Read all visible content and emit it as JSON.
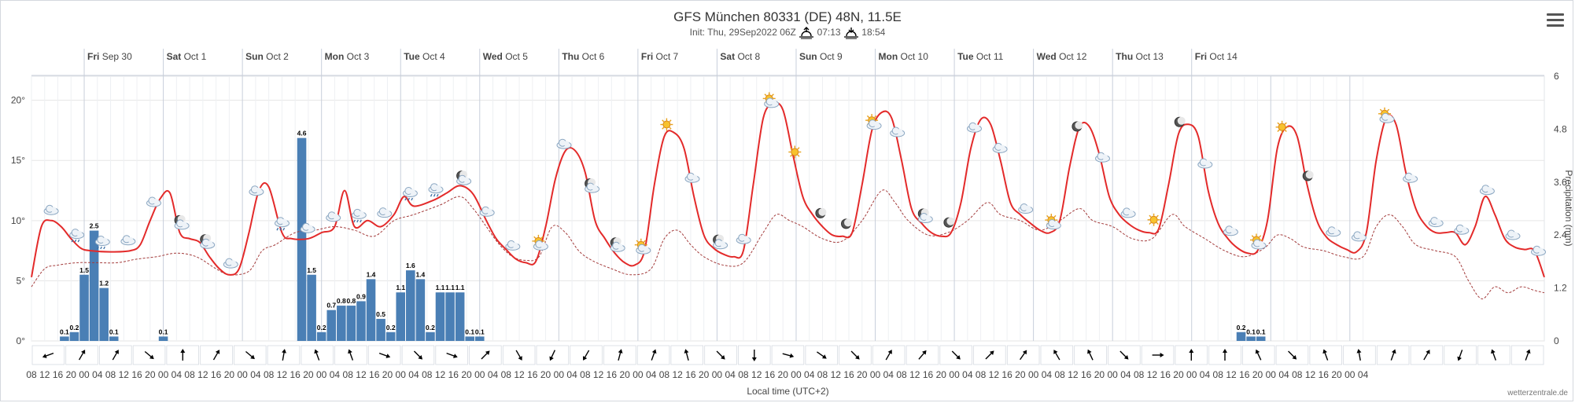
{
  "title": "GFS München 80331 (DE) 48N, 11.5E",
  "subtitle": {
    "init": "Init: Thu, 29Sep2022 06Z",
    "sunrise": "07:13",
    "sunset": "18:54"
  },
  "menu_icon": "hamburger-menu-icon",
  "credit": "wetterzentrale.de",
  "colors": {
    "temp_line": "#e32a2a",
    "dewpoint_line": "#a33b3b",
    "precip_bar": "#4a7fb5",
    "grid": "#e6e6e6",
    "day_line": "#c8cfdb"
  },
  "chart_data": {
    "type": "bar+line",
    "x_axis_title": "Local time (UTC+2)",
    "left_axis": {
      "label": "°C",
      "ticks": [
        "0°",
        "5°",
        "10°",
        "15°",
        "20°"
      ],
      "range": [
        0,
        22
      ]
    },
    "right_axis": {
      "label": "Precipitation (mm)",
      "ticks": [
        "0",
        "1.2",
        "2.4",
        "3.6",
        "4.8",
        "6"
      ],
      "range": [
        0,
        6
      ]
    },
    "day_labels": [
      {
        "dow": "Fri",
        "date": "Sep 30"
      },
      {
        "dow": "Sat",
        "date": "Oct 1"
      },
      {
        "dow": "Sun",
        "date": "Oct 2"
      },
      {
        "dow": "Mon",
        "date": "Oct 3"
      },
      {
        "dow": "Tue",
        "date": "Oct 4"
      },
      {
        "dow": "Wed",
        "date": "Oct 5"
      },
      {
        "dow": "Thu",
        "date": "Oct 6"
      },
      {
        "dow": "Fri",
        "date": "Oct 7"
      },
      {
        "dow": "Sat",
        "date": "Oct 8"
      },
      {
        "dow": "Sun",
        "date": "Oct 9"
      },
      {
        "dow": "Mon",
        "date": "Oct 10"
      },
      {
        "dow": "Tue",
        "date": "Oct 11"
      },
      {
        "dow": "Wed",
        "date": "Oct 12"
      },
      {
        "dow": "Thu",
        "date": "Oct 13"
      },
      {
        "dow": "Fri",
        "date": "Oct 14"
      }
    ],
    "hour_ticks": [
      "08",
      "12",
      "16",
      "20",
      "00",
      "04",
      "08",
      "12",
      "16",
      "20",
      "00",
      "04",
      "08",
      "12",
      "16",
      "20",
      "00",
      "04",
      "08",
      "12",
      "16",
      "20",
      "00",
      "04",
      "08",
      "12",
      "16",
      "20",
      "00",
      "04",
      "08",
      "12",
      "16",
      "20",
      "00",
      "04",
      "08",
      "12",
      "16",
      "20",
      "00",
      "04",
      "08",
      "12",
      "16",
      "20",
      "00",
      "04",
      "08",
      "12",
      "16",
      "20",
      "00",
      "04",
      "08",
      "12",
      "16",
      "20",
      "00",
      "04",
      "08",
      "12",
      "16",
      "20",
      "00",
      "04",
      "08",
      "12",
      "16",
      "20",
      "00",
      "04",
      "08",
      "12",
      "16",
      "20",
      "00",
      "04",
      "08",
      "12",
      "16",
      "20",
      "00",
      "04",
      "08",
      "12",
      "16",
      "20",
      "00",
      "04",
      "08",
      "12",
      "16",
      "20",
      "00",
      "04",
      "08",
      "12",
      "16",
      "20",
      "00",
      "04"
    ],
    "precipitation_mm": [
      {
        "h": 10,
        "v": 0.1
      },
      {
        "h": 13,
        "v": 0.2
      },
      {
        "h": 16,
        "v": 1.5
      },
      {
        "h": 19,
        "v": 2.5
      },
      {
        "h": 22,
        "v": 1.2
      },
      {
        "h": 25,
        "v": 0.1
      },
      {
        "h": 40,
        "v": 0.1
      },
      {
        "h": 82,
        "v": 4.6
      },
      {
        "h": 85,
        "v": 1.5
      },
      {
        "h": 88,
        "v": 0.2
      },
      {
        "h": 91,
        "v": 0.7
      },
      {
        "h": 94,
        "v": 0.8
      },
      {
        "h": 97,
        "v": 0.8
      },
      {
        "h": 100,
        "v": 0.9
      },
      {
        "h": 103,
        "v": 1.4
      },
      {
        "h": 106,
        "v": 0.5
      },
      {
        "h": 109,
        "v": 0.2
      },
      {
        "h": 112,
        "v": 1.1
      },
      {
        "h": 115,
        "v": 1.6
      },
      {
        "h": 118,
        "v": 1.4
      },
      {
        "h": 121,
        "v": 0.2
      },
      {
        "h": 124,
        "v": 1.1
      },
      {
        "h": 127,
        "v": 1.1
      },
      {
        "h": 130,
        "v": 1.1
      },
      {
        "h": 133,
        "v": 0.1
      },
      {
        "h": 136,
        "v": 0.1
      },
      {
        "h": 367,
        "v": 0.2
      },
      {
        "h": 370,
        "v": 0.1
      },
      {
        "h": 373,
        "v": 0.1
      }
    ],
    "temperature_c": [
      [
        0,
        5.3
      ],
      [
        3,
        9.5
      ],
      [
        6,
        10
      ],
      [
        9,
        9.5
      ],
      [
        12,
        8.5
      ],
      [
        15,
        7.7
      ],
      [
        18,
        7.5
      ],
      [
        24,
        7.4
      ],
      [
        30,
        7.5
      ],
      [
        33,
        8
      ],
      [
        36,
        10
      ],
      [
        39,
        11.8
      ],
      [
        42,
        12.3
      ],
      [
        45,
        9
      ],
      [
        48,
        8.5
      ],
      [
        51,
        8.2
      ],
      [
        54,
        7
      ],
      [
        57,
        6
      ],
      [
        60,
        5.5
      ],
      [
        63,
        6
      ],
      [
        66,
        9
      ],
      [
        69,
        12.5
      ],
      [
        72,
        12.8
      ],
      [
        76,
        9
      ],
      [
        79,
        8.5
      ],
      [
        84,
        8.5
      ],
      [
        88,
        9
      ],
      [
        92,
        9.5
      ],
      [
        95,
        12.5
      ],
      [
        98,
        9.5
      ],
      [
        102,
        10
      ],
      [
        106,
        9.5
      ],
      [
        110,
        10.5
      ],
      [
        113,
        12
      ],
      [
        116,
        11.2
      ],
      [
        122,
        11.7
      ],
      [
        126,
        12.3
      ],
      [
        130,
        12.9
      ],
      [
        134,
        12.2
      ],
      [
        138,
        10
      ],
      [
        141,
        8.5
      ],
      [
        144,
        7.6
      ],
      [
        147,
        6.8
      ],
      [
        150,
        6.5
      ],
      [
        153,
        6.6
      ],
      [
        156,
        9.5
      ],
      [
        159,
        13.5
      ],
      [
        162,
        15.8
      ],
      [
        165,
        15.8
      ],
      [
        168,
        14
      ],
      [
        171,
        10
      ],
      [
        174,
        8.5
      ],
      [
        177,
        7.3
      ],
      [
        180,
        6.5
      ],
      [
        183,
        6.3
      ],
      [
        186,
        7.5
      ],
      [
        189,
        13
      ],
      [
        192,
        17
      ],
      [
        195,
        17.3
      ],
      [
        198,
        16
      ],
      [
        201,
        12
      ],
      [
        204,
        8.8
      ],
      [
        207,
        7.7
      ],
      [
        210,
        7.2
      ],
      [
        213,
        7
      ],
      [
        216,
        7.5
      ],
      [
        219,
        13
      ],
      [
        222,
        18.5
      ],
      [
        225,
        19.7
      ],
      [
        228,
        19.2
      ],
      [
        231,
        15.5
      ],
      [
        234,
        12
      ],
      [
        237,
        10.5
      ],
      [
        240,
        9.5
      ],
      [
        243,
        8.8
      ],
      [
        246,
        8.7
      ],
      [
        249,
        9
      ],
      [
        252,
        13
      ],
      [
        255,
        17.5
      ],
      [
        258,
        19
      ],
      [
        261,
        18.5
      ],
      [
        264,
        15
      ],
      [
        267,
        11
      ],
      [
        270,
        9.8
      ],
      [
        273,
        9
      ],
      [
        276,
        8.7
      ],
      [
        279,
        9
      ],
      [
        282,
        11.5
      ],
      [
        285,
        16
      ],
      [
        288,
        18.4
      ],
      [
        291,
        18
      ],
      [
        294,
        15
      ],
      [
        297,
        11.5
      ],
      [
        300,
        10.5
      ],
      [
        303,
        9.8
      ],
      [
        306,
        9.2
      ],
      [
        309,
        9
      ],
      [
        312,
        10
      ],
      [
        315,
        14.5
      ],
      [
        318,
        17.8
      ],
      [
        321,
        17.8
      ],
      [
        324,
        15.5
      ],
      [
        327,
        12
      ],
      [
        330,
        10.5
      ],
      [
        333,
        9.7
      ],
      [
        336,
        9.2
      ],
      [
        339,
        9
      ],
      [
        342,
        9.3
      ],
      [
        345,
        13
      ],
      [
        348,
        17.2
      ],
      [
        351,
        18
      ],
      [
        354,
        17
      ],
      [
        357,
        12.5
      ],
      [
        360,
        9.8
      ],
      [
        363,
        8.5
      ],
      [
        366,
        7.7
      ],
      [
        369,
        7.3
      ],
      [
        372,
        7.5
      ],
      [
        375,
        10
      ],
      [
        378,
        16
      ],
      [
        381,
        17.8
      ],
      [
        384,
        17
      ],
      [
        387,
        13
      ],
      [
        390,
        10
      ],
      [
        393,
        8.6
      ],
      [
        396,
        8
      ],
      [
        399,
        7.6
      ],
      [
        402,
        7.4
      ],
      [
        405,
        9
      ],
      [
        408,
        15
      ],
      [
        411,
        18.5
      ],
      [
        414,
        18
      ],
      [
        417,
        14
      ],
      [
        420,
        11
      ],
      [
        423,
        9.6
      ],
      [
        426,
        9
      ],
      [
        429,
        9
      ],
      [
        432,
        9
      ],
      [
        435,
        8
      ],
      [
        438,
        9.5
      ],
      [
        441,
        12
      ],
      [
        444,
        10.5
      ],
      [
        447,
        8.5
      ],
      [
        450,
        7.8
      ],
      [
        453,
        7.6
      ],
      [
        456,
        7.5
      ],
      [
        459,
        5.3
      ]
    ],
    "dewpoint_c": [
      [
        0,
        4.5
      ],
      [
        4,
        6
      ],
      [
        8,
        6.3
      ],
      [
        14,
        6.5
      ],
      [
        20,
        6.5
      ],
      [
        26,
        6.5
      ],
      [
        32,
        6.8
      ],
      [
        38,
        7
      ],
      [
        44,
        7.3
      ],
      [
        50,
        7
      ],
      [
        56,
        6
      ],
      [
        60,
        5.5
      ],
      [
        66,
        5.8
      ],
      [
        70,
        7.5
      ],
      [
        74,
        8
      ],
      [
        80,
        9
      ],
      [
        86,
        9.2
      ],
      [
        92,
        9.5
      ],
      [
        98,
        9.2
      ],
      [
        104,
        8.7
      ],
      [
        110,
        10
      ],
      [
        116,
        10.5
      ],
      [
        124,
        11.3
      ],
      [
        130,
        12
      ],
      [
        134,
        11
      ],
      [
        138,
        9.5
      ],
      [
        142,
        8
      ],
      [
        146,
        7
      ],
      [
        150,
        6.7
      ],
      [
        154,
        7
      ],
      [
        158,
        9.5
      ],
      [
        162,
        9
      ],
      [
        166,
        7.5
      ],
      [
        170,
        6.7
      ],
      [
        176,
        6
      ],
      [
        182,
        5.5
      ],
      [
        188,
        6
      ],
      [
        192,
        8.5
      ],
      [
        196,
        9.2
      ],
      [
        200,
        8
      ],
      [
        204,
        7
      ],
      [
        210,
        6.3
      ],
      [
        216,
        6.5
      ],
      [
        222,
        9
      ],
      [
        226,
        10.5
      ],
      [
        230,
        10
      ],
      [
        234,
        9.5
      ],
      [
        240,
        8.5
      ],
      [
        246,
        8.3
      ],
      [
        252,
        10
      ],
      [
        258,
        12.5
      ],
      [
        262,
        11.5
      ],
      [
        266,
        10
      ],
      [
        272,
        8.8
      ],
      [
        278,
        9
      ],
      [
        284,
        10
      ],
      [
        290,
        11.5
      ],
      [
        294,
        10.5
      ],
      [
        300,
        10
      ],
      [
        306,
        9.2
      ],
      [
        312,
        10
      ],
      [
        318,
        11
      ],
      [
        322,
        10
      ],
      [
        328,
        9.5
      ],
      [
        334,
        8.5
      ],
      [
        340,
        8.5
      ],
      [
        346,
        10.5
      ],
      [
        350,
        9.5
      ],
      [
        356,
        8.5
      ],
      [
        362,
        7.5
      ],
      [
        368,
        7
      ],
      [
        374,
        7.7
      ],
      [
        378,
        8.8
      ],
      [
        382,
        8.5
      ],
      [
        386,
        7.8
      ],
      [
        392,
        7.5
      ],
      [
        398,
        7
      ],
      [
        404,
        7
      ],
      [
        408,
        9.5
      ],
      [
        412,
        10.5
      ],
      [
        416,
        9.5
      ],
      [
        420,
        8
      ],
      [
        426,
        7.5
      ],
      [
        432,
        7
      ],
      [
        436,
        5
      ],
      [
        440,
        3.5
      ],
      [
        444,
        4.5
      ],
      [
        448,
        4
      ],
      [
        452,
        4.5
      ],
      [
        456,
        4.2
      ],
      [
        459,
        4
      ]
    ],
    "wind_directions_deg": [
      160,
      300,
      300,
      40,
      270,
      300,
      40,
      280,
      250,
      250,
      20,
      45,
      20,
      315,
      60,
      115,
      120,
      285,
      290,
      255,
      45,
      90,
      15,
      35,
      45,
      300,
      310,
      45,
      315,
      305,
      240,
      245,
      45,
      360,
      270,
      270,
      245,
      45,
      250,
      260,
      290,
      300,
      110,
      250,
      290
    ],
    "weather_symbols": [
      "cloud",
      "cloud-rain",
      "cloud-rain",
      "cloud",
      "cloud",
      "moon-cloud",
      "moon-cloud",
      "cloud",
      "cloud",
      "cloud-rain",
      "cloud",
      "cloud",
      "cloud-rain",
      "cloud",
      "cloud-rain",
      "cloud-rain",
      "moon-cloud",
      "cloud",
      "cloud",
      "sun-cloud",
      "cloud",
      "moon-cloud",
      "moon-cloud",
      "sun-cloud",
      "sun",
      "cloud",
      "moon-cloud",
      "cloud",
      "sun-cloud",
      "sun",
      "moon",
      "moon",
      "sun-cloud",
      "cloud",
      "moon-cloud",
      "moon",
      "cloud",
      "cloud",
      "cloud",
      "sun-cloud",
      "moon",
      "cloud",
      "cloud",
      "sun",
      "moon",
      "cloud",
      "cloud",
      "sun-cloud",
      "sun",
      "moon",
      "cloud",
      "cloud",
      "sun-cloud",
      "cloud",
      "cloud",
      "cloud",
      "cloud",
      "cloud",
      "cloud"
    ]
  }
}
